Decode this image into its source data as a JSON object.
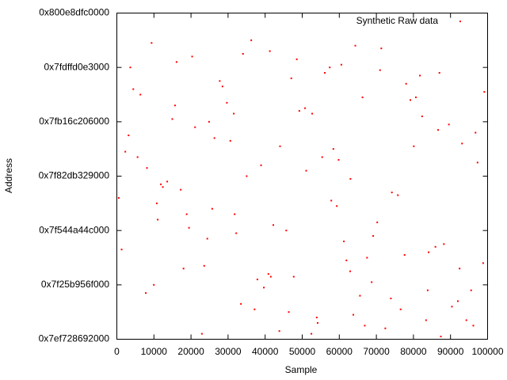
{
  "chart_data": {
    "type": "scatter",
    "xlabel": "Sample",
    "ylabel": "Address",
    "xlim": [
      0,
      100000
    ],
    "xticks": [
      0,
      10000,
      20000,
      30000,
      40000,
      50000,
      60000,
      70000,
      80000,
      90000,
      100000
    ],
    "ylim": [
      139600000000000,
      140800000000000
    ],
    "yticks": [
      {
        "value": 139600000000000,
        "label": "0x7ef728692000"
      },
      {
        "value": 139800000000000,
        "label": "0x7f25b956f000"
      },
      {
        "value": 140000000000000,
        "label": "0x7f544a44c000"
      },
      {
        "value": 140200000000000,
        "label": "0x7f82db329000"
      },
      {
        "value": 140400000000000,
        "label": "0x7fb16c206000"
      },
      {
        "value": 140600000000000,
        "label": "0x7fdffd0e3000"
      },
      {
        "value": 140800000000000,
        "label": "0x800e8dfc0000"
      }
    ],
    "grid": false,
    "legend": "top-right",
    "series": [
      {
        "name": "Synthetic Raw data",
        "color": "#ff0000",
        "x": [
          512,
          83410,
          27755,
          61920,
          44018,
          9371,
          95560,
          70233,
          15689,
          52471,
          38904,
          88215,
          3620,
          76544,
          21098,
          59330,
          47712,
          99120,
          12405,
          66873,
          31540,
          84097,
          5590,
          41266,
          73918,
          18834,
          56102,
          92450,
          26317,
          63785,
          35021,
          80664,
          9980,
          48533,
          69147,
          2277,
          87392,
          14960,
          57836,
          33470,
          78025,
          23561,
          96740,
          42199,
          64318,
          7804,
          51073,
          85926,
          29685,
          72410,
          17242,
          60557,
          37908,
          93114,
          46381,
          81753,
          11029,
          67490,
          24876,
          54163,
          97285,
          4433,
          39657,
          75802,
          20314,
          62941,
          86650,
          32198,
          50760,
          90377,
          13584,
          70991,
          43825,
          58407,
          1290,
          79168,
          25723,
          65582,
          36249,
          98804,
          8122,
          53916,
          82340,
          19467,
          47055,
          68730,
          30612,
          91983,
          16105,
          61244,
          74187,
          6350,
          40871,
          89562,
          22940,
          55384,
          34026,
          77609,
          10770,
          49218,
          83845,
          28491,
          63012,
          94271,
          3158,
          45697,
          71335,
          17988,
          59824,
          37146,
          87010,
          24403,
          52689,
          96148,
          11876,
          66255,
          41532,
          80097,
          31768,
          57420
        ],
        "values": [
          140120000000000.0,
          139670000000000.0,
          140550000000000.0,
          139890000000000.0,
          140310000000000.0,
          140690000000000.0,
          139780000000000.0,
          140030000000000.0,
          140460000000000.0,
          139620000000000.0,
          140240000000000.0,
          139950000000000.0,
          140600000000000.0,
          139710000000000.0,
          140380000000000.0,
          140090000000000.0,
          139830000000000.0,
          140510000000000.0,
          140160000000000.0,
          139650000000000.0,
          140430000000000.0,
          139920000000000.0,
          140270000000000.0,
          140660000000000.0,
          139750000000000.0,
          140060000000000.0,
          140580000000000.0,
          139860000000000.0,
          140340000000000.0,
          139690000000000.0,
          140200000000000.0,
          140490000000000.0,
          139800000000000.0,
          140630000000000.0,
          139980000000000.0,
          140290000000000.0,
          139610000000000.0,
          140410000000000.0,
          140110000000000.0,
          139730000000000.0,
          140540000000000.0,
          139870000000000.0,
          140360000000000.0,
          140020000000000.0,
          140680000000000.0,
          139770000000000.0,
          140220000000000.0,
          139940000000000.0,
          140470000000000.0,
          139640000000000.0,
          140150000000000.0,
          140610000000000.0,
          139820000000000.0,
          140320000000000.0,
          139700000000000.0,
          140570000000000.0,
          140040000000000.0,
          139900000000000.0,
          140400000000000.0,
          139660000000000.0,
          140250000000000.0,
          140520000000000.0,
          139790000000000.0,
          140130000000000.0,
          140640000000000.0,
          139850000000000.0,
          140370000000000.0,
          139990000000000.0,
          140450000000000.0,
          139720000000000.0,
          140180000000000.0,
          140590000000000.0,
          139630000000000.0,
          140300000000000.0,
          139930000000000.0,
          140480000000000.0,
          140080000000000.0,
          139760000000000.0,
          140700000000000.0,
          139880000000000.0,
          140230000000000.0,
          139680000000000.0,
          140420000000000.0,
          140010000000000.0,
          140560000000000.0,
          139810000000000.0,
          140330000000000.0,
          139740000000000.0,
          140620000000000.0,
          139960000000000.0,
          140140000000000.0,
          140500000000000.0,
          139840000000000.0,
          140390000000000.0,
          139620000000000.0,
          140270000000000.0,
          140650000000000.0,
          139910000000000.0,
          140100000000000.0,
          140440000000000.0,
          139780000000000.0,
          140530000000000.0,
          140190000000000.0,
          139670000000000.0,
          140350000000000.0,
          140000000000000.0,
          140670000000000.0,
          139860000000000.0,
          140260000000000.0,
          139710000000000.0,
          140580000000000.0,
          139970000000000.0,
          140430000000000.0,
          139650000000000.0,
          140170000000000.0,
          140490000000000.0,
          139830000000000.0,
          140310000000000.0,
          140060000000000.0,
          140600000000000.0
        ]
      }
    ]
  }
}
